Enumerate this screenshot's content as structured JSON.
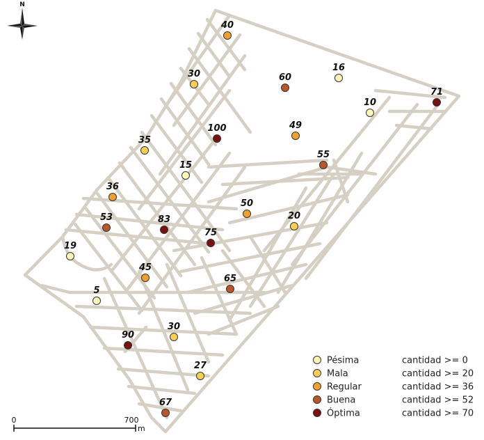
{
  "north_label": "N",
  "scale": {
    "start": "0",
    "end": "700",
    "unit": "m"
  },
  "classes": [
    {
      "name": "Pésima",
      "rule": "cantidad >= 0",
      "color": "#fff6b8"
    },
    {
      "name": "Mala",
      "rule": "cantidad >= 20",
      "color": "#f7cf55"
    },
    {
      "name": "Regular",
      "rule": "cantidad >= 36",
      "color": "#f0a030"
    },
    {
      "name": "Buena",
      "rule": "cantidad >= 52",
      "color": "#b8582a"
    },
    {
      "name": "Óptima",
      "rule": "cantidad >= 70",
      "color": "#7a1010"
    }
  ],
  "points": [
    {
      "label": "40",
      "value": 40
    },
    {
      "label": "30",
      "value": 30
    },
    {
      "label": "60",
      "value": 60
    },
    {
      "label": "16",
      "value": 16
    },
    {
      "label": "10",
      "value": 10
    },
    {
      "label": "71",
      "value": 71
    },
    {
      "label": "100",
      "value": 100
    },
    {
      "label": "49",
      "value": 49
    },
    {
      "label": "35",
      "value": 35
    },
    {
      "label": "15",
      "value": 15
    },
    {
      "label": "55",
      "value": 55
    },
    {
      "label": "36",
      "value": 36
    },
    {
      "label": "50",
      "value": 50
    },
    {
      "label": "20",
      "value": 20
    },
    {
      "label": "53",
      "value": 53
    },
    {
      "label": "83",
      "value": 83
    },
    {
      "label": "75",
      "value": 75
    },
    {
      "label": "19",
      "value": 19
    },
    {
      "label": "45",
      "value": 45
    },
    {
      "label": "65",
      "value": 65
    },
    {
      "label": "5",
      "value": 5
    },
    {
      "label": "90",
      "value": 90
    },
    {
      "label": "30",
      "value": 30
    },
    {
      "label": "27",
      "value": 27
    },
    {
      "label": "67",
      "value": 67
    }
  ]
}
